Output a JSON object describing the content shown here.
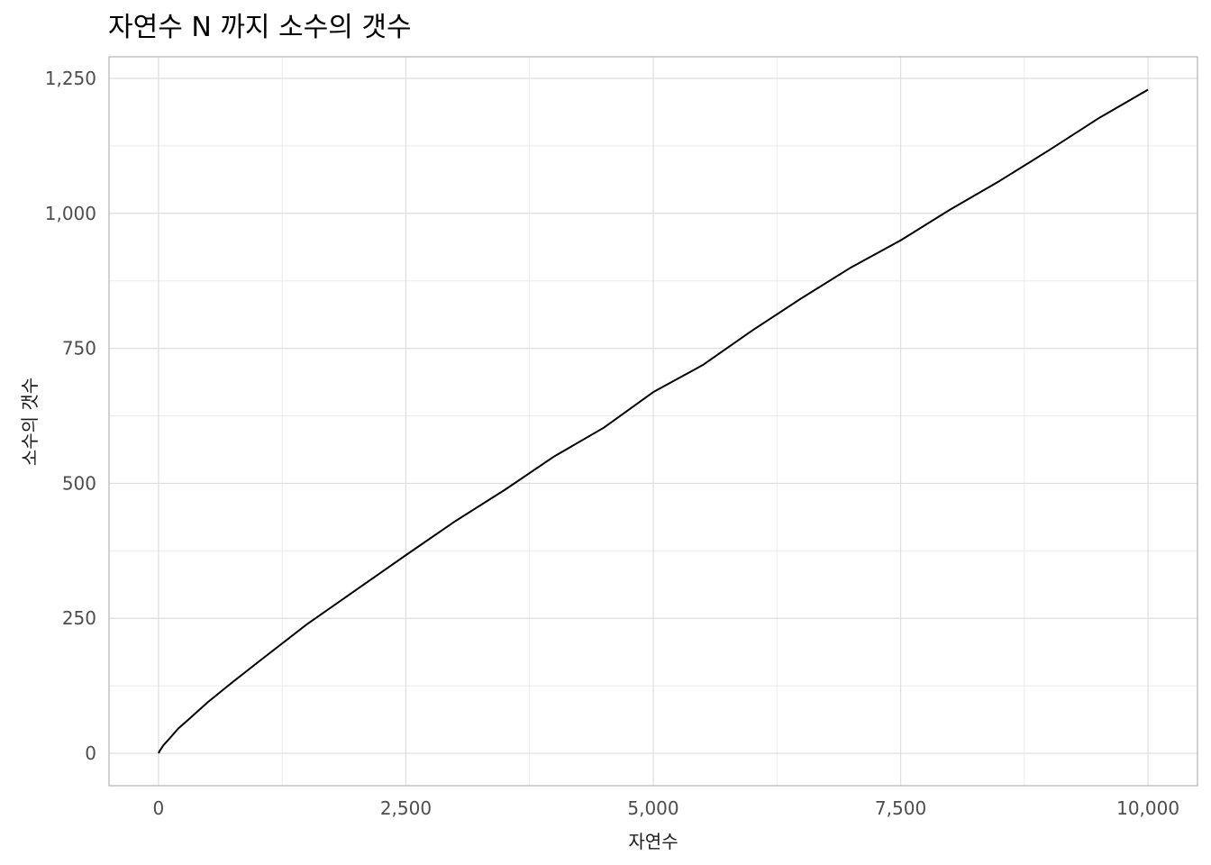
{
  "chart_data": {
    "type": "line",
    "title": "자연수 N 까지 소수의 갯수",
    "xlabel": "자연수",
    "ylabel": "소수의 갯수",
    "xlim": [
      -500,
      10500
    ],
    "ylim": [
      -60,
      1290
    ],
    "x_ticks": [
      0,
      2500,
      5000,
      7500,
      10000
    ],
    "x_tick_labels": [
      "0",
      "2,500",
      "5,000",
      "7,500",
      "10,000"
    ],
    "y_ticks": [
      0,
      250,
      500,
      750,
      1000,
      1250
    ],
    "y_tick_labels": [
      "0",
      "250",
      "500",
      "750",
      "1,000",
      "1,250"
    ],
    "grid": true,
    "line_color": "#000000",
    "series": [
      {
        "x": [
          1,
          10,
          50,
          100,
          200,
          300,
          500,
          750,
          1000,
          1500,
          2000,
          2500,
          3000,
          3500,
          4000,
          4500,
          5000,
          5500,
          6000,
          6500,
          7000,
          7500,
          8000,
          8500,
          9000,
          9500,
          10000
        ],
        "y": [
          0,
          4,
          15,
          25,
          46,
          62,
          95,
          132,
          168,
          239,
          303,
          367,
          430,
          488,
          550,
          603,
          669,
          719,
          783,
          843,
          900,
          950,
          1007,
          1060,
          1117,
          1176,
          1229
        ]
      }
    ]
  }
}
